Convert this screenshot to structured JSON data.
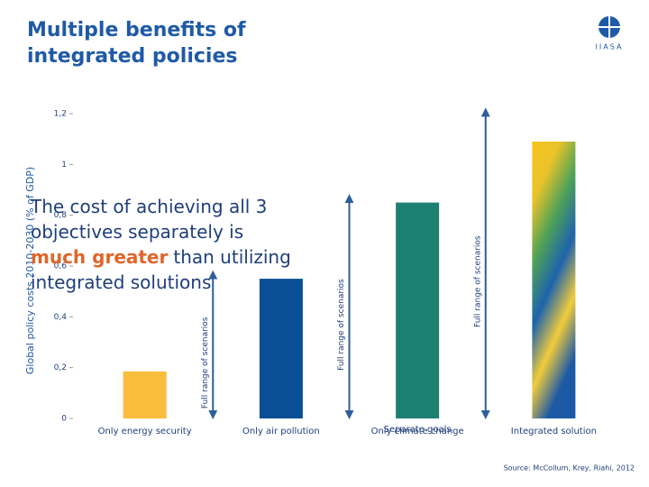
{
  "chart_data": {
    "type": "bar",
    "title_lines": [
      "Multiple benefits of",
      "integrated policies"
    ],
    "logo_text": "IIASA",
    "y_label": "Global policy costs 2010-2030 (% of GDP)",
    "categories": [
      "Only energy security",
      "Only air pollution",
      "Only climate change",
      "Integrated solution"
    ],
    "values": [
      0.185,
      0.55,
      0.85,
      1.09
    ],
    "fills": [
      "#f9bc3c",
      "#0a4f96",
      "#1e8070",
      [
        "#f7c51e",
        "#e9c32a",
        "#4fa257",
        "#1d63ad",
        "#f2cc3b",
        "#1d5aa6"
      ]
    ],
    "ylim": [
      0,
      1.2
    ],
    "yticks": [
      {
        "value": 1.2,
        "label": "1,2"
      },
      1,
      {
        "value": 0.8,
        "label": "0,8"
      },
      {
        "value": 0.6,
        "label": "0,6"
      },
      {
        "value": 0.4,
        "label": "0,4"
      },
      {
        "value": 0.2,
        "label": "0,2"
      },
      0
    ],
    "scenario_ranges": [
      {
        "label": "Full range of scenarios",
        "low": 0,
        "high": 0.58
      },
      {
        "label": "Full range of scenarios",
        "low": 0,
        "high": 0.88
      },
      {
        "label": "Full range of scenarios",
        "low": 0,
        "high": 1.22
      }
    ],
    "arrow_color": "#2c5f9a",
    "group_label": "Separate goals",
    "annotation_parts": [
      "The cost of achieving all 3 objectives separately is ",
      "much greater",
      " than utilizing integrated solutions"
    ],
    "source": "Source: McCollum, Krey, Riahi, 2012"
  }
}
